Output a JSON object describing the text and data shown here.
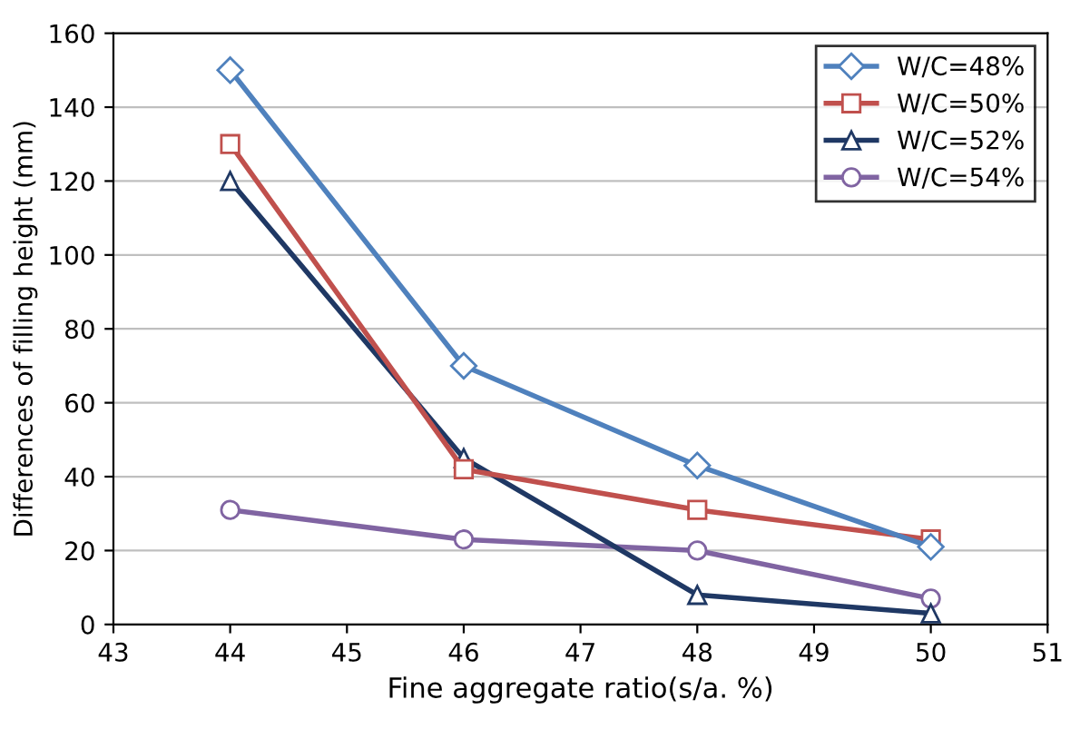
{
  "chart_data": {
    "type": "line",
    "xlabel": "Fine aggregate ratio(s/a. %)",
    "ylabel": "Differences of filling height (mm)",
    "x": [
      44,
      46,
      48,
      50
    ],
    "series": [
      {
        "name": "W/C=48%",
        "color": "#4f81bd",
        "marker": "diamond",
        "values": [
          150,
          70,
          43,
          21
        ]
      },
      {
        "name": "W/C=50%",
        "color": "#c0504d",
        "marker": "square",
        "values": [
          130,
          42,
          31,
          23
        ]
      },
      {
        "name": "W/C=52%",
        "color": "#1f3864",
        "marker": "triangle",
        "values": [
          120,
          45,
          8,
          3
        ]
      },
      {
        "name": "W/C=54%",
        "color": "#8064a2",
        "marker": "circle",
        "values": [
          31,
          23,
          20,
          7
        ]
      }
    ],
    "xlim": [
      43,
      51
    ],
    "xticks": [
      43,
      44,
      45,
      46,
      47,
      48,
      49,
      50,
      51
    ],
    "ylim": [
      0,
      160
    ],
    "yticks": [
      0,
      20,
      40,
      60,
      80,
      100,
      120,
      140,
      160
    ],
    "grid": "y",
    "legend": "top right",
    "line_style": "solid"
  }
}
